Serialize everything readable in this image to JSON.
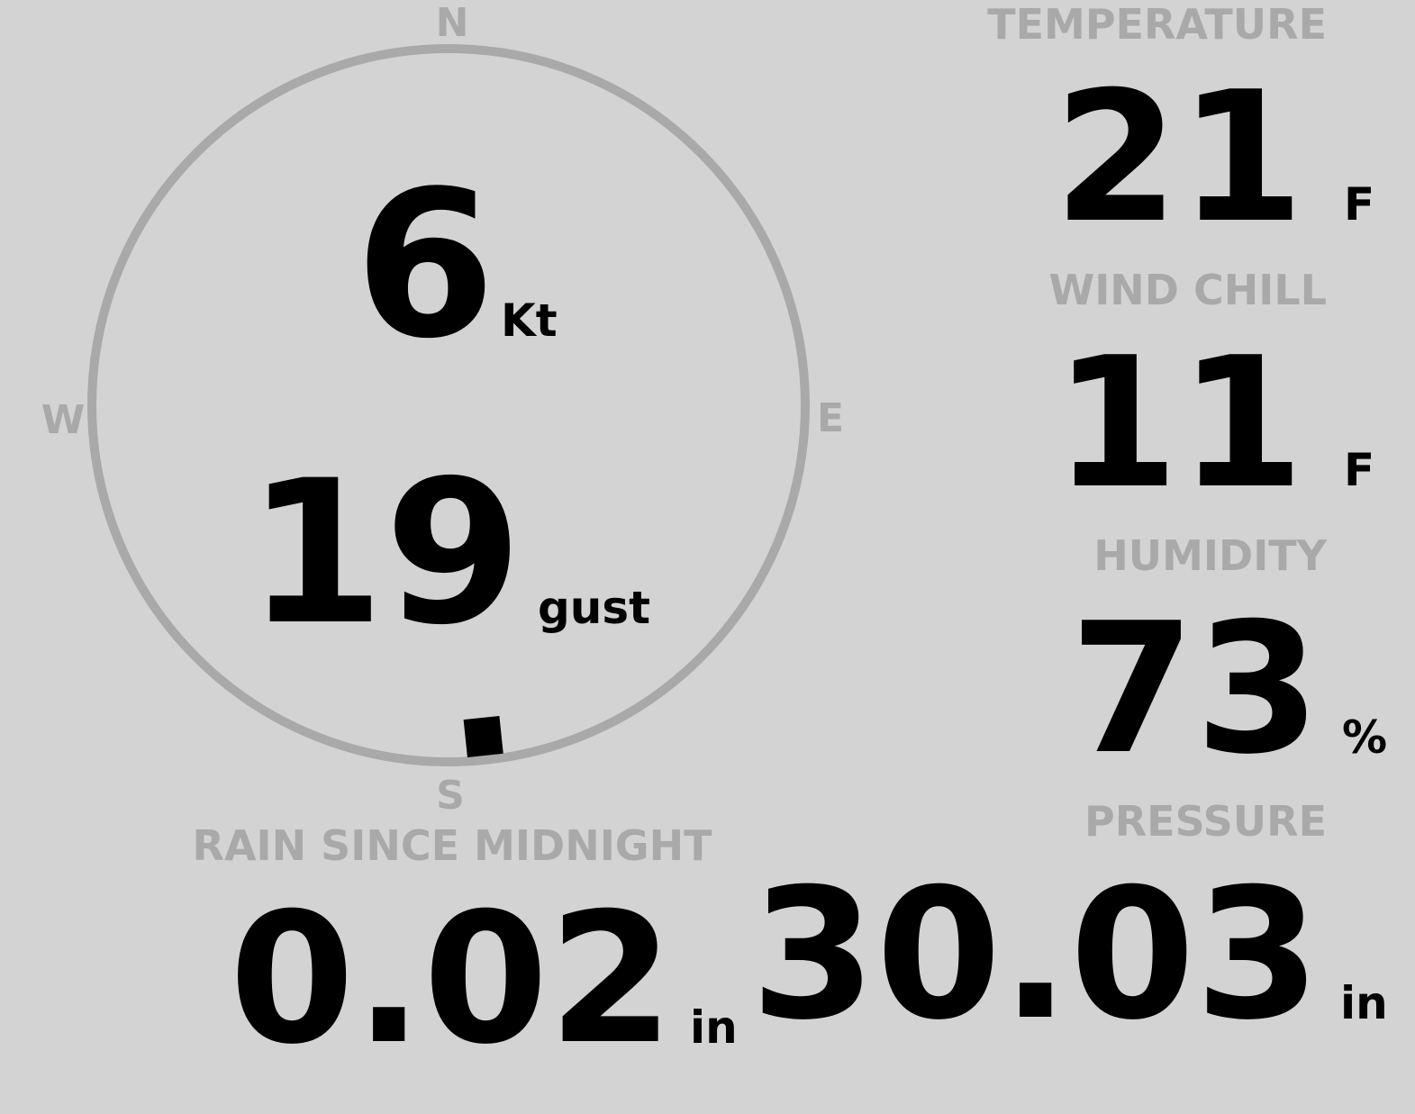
{
  "colors": {
    "background": "#d3d3d3",
    "label": "#a9a9a9",
    "value": "#000000"
  },
  "compass": {
    "north": "N",
    "south": "S",
    "east": "E",
    "west": "W",
    "wind_direction_deg": 174,
    "wind_speed": "6",
    "wind_speed_unit": "Kt",
    "gust": "19",
    "gust_label": "gust"
  },
  "temperature": {
    "label": "TEMPERATURE",
    "value": "21",
    "unit": "F"
  },
  "wind_chill": {
    "label": "WIND CHILL",
    "value": "11",
    "unit": "F"
  },
  "humidity": {
    "label": "HUMIDITY",
    "value": "73",
    "unit": "%"
  },
  "rain": {
    "label": "RAIN SINCE MIDNIGHT",
    "value": "0.02",
    "unit": "in"
  },
  "pressure": {
    "label": "PRESSURE",
    "value": "30.03",
    "unit": "in"
  }
}
